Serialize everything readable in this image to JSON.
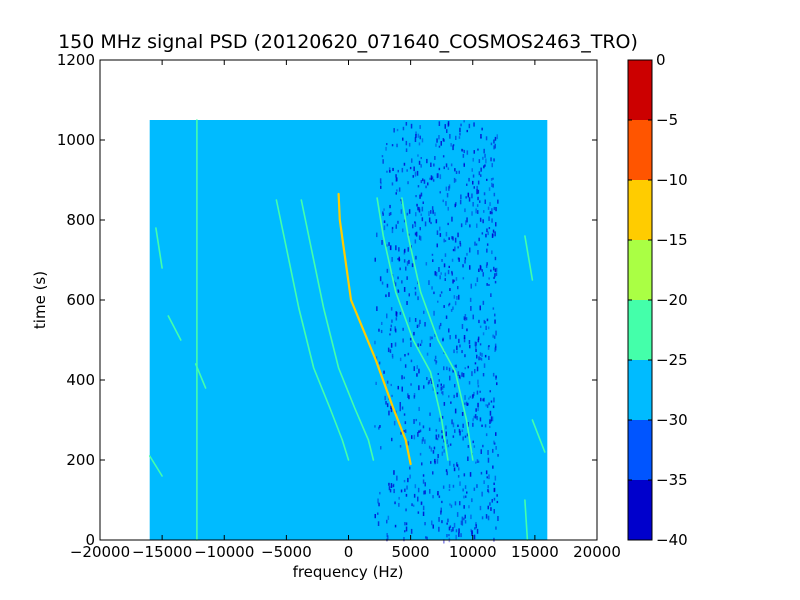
{
  "chart_data": {
    "type": "heatmap",
    "title": "150 MHz signal PSD (20120620_071640_COSMOS2463_TRO)",
    "xlabel": "frequency (Hz)",
    "ylabel": "time (s)",
    "xlim": [
      -20000,
      20000
    ],
    "ylim": [
      0,
      1200
    ],
    "x_ticks": [
      -20000,
      -15000,
      -10000,
      -5000,
      0,
      5000,
      10000,
      15000,
      20000
    ],
    "y_ticks": [
      0,
      200,
      400,
      600,
      800,
      1000,
      1200
    ],
    "data_extent": {
      "x": [
        -16000,
        16000
      ],
      "y": [
        0,
        1050
      ]
    },
    "background_level": -28,
    "colorbar": {
      "range": [
        -40,
        0
      ],
      "ticks": [
        0,
        -5,
        -10,
        -15,
        -20,
        -25,
        -30,
        -35,
        -40
      ],
      "bands": [
        {
          "from": -40,
          "to": -35,
          "color": "#0000cc"
        },
        {
          "from": -35,
          "to": -30,
          "color": "#0055ff"
        },
        {
          "from": -30,
          "to": -25,
          "color": "#00bbff"
        },
        {
          "from": -25,
          "to": -20,
          "color": "#44ffaa"
        },
        {
          "from": -20,
          "to": -15,
          "color": "#aaff44"
        },
        {
          "from": -15,
          "to": -10,
          "color": "#ffcc00"
        },
        {
          "from": -10,
          "to": -5,
          "color": "#ff5500"
        },
        {
          "from": -5,
          "to": 0,
          "color": "#cc0000"
        }
      ]
    },
    "noise_band": {
      "x": [
        2000,
        12000
      ],
      "level": -35
    },
    "series": [
      {
        "level": -24,
        "points": [
          [
            -5800,
            850
          ],
          [
            -5000,
            730
          ],
          [
            -4000,
            580
          ],
          [
            -2800,
            430
          ],
          [
            -1500,
            330
          ],
          [
            -500,
            250
          ],
          [
            0,
            200
          ]
        ]
      },
      {
        "level": -24,
        "points": [
          [
            -3800,
            850
          ],
          [
            -3000,
            730
          ],
          [
            -2000,
            580
          ],
          [
            -800,
            430
          ],
          [
            500,
            330
          ],
          [
            1600,
            250
          ],
          [
            2000,
            200
          ]
        ]
      },
      {
        "level": -12,
        "points": [
          [
            -800,
            865
          ],
          [
            -700,
            800
          ],
          [
            200,
            600
          ],
          [
            2200,
            450
          ],
          [
            3600,
            330
          ],
          [
            4600,
            250
          ],
          [
            5000,
            190
          ]
        ]
      },
      {
        "level": -24,
        "points": [
          [
            2300,
            855
          ],
          [
            2800,
            760
          ],
          [
            3800,
            620
          ],
          [
            5200,
            500
          ],
          [
            6600,
            420
          ],
          [
            7500,
            300
          ],
          [
            8000,
            200
          ]
        ]
      },
      {
        "level": -24,
        "points": [
          [
            4300,
            855
          ],
          [
            4800,
            760
          ],
          [
            5800,
            620
          ],
          [
            7200,
            500
          ],
          [
            8600,
            420
          ],
          [
            9500,
            300
          ],
          [
            10000,
            200
          ]
        ]
      },
      {
        "level": -24,
        "points": [
          [
            -12200,
            0
          ],
          [
            -12200,
            1050
          ]
        ]
      },
      {
        "level": -24,
        "points": [
          [
            -16000,
            210
          ],
          [
            -15000,
            160
          ]
        ]
      },
      {
        "level": -24,
        "points": [
          [
            -15500,
            780
          ],
          [
            -15000,
            680
          ]
        ]
      },
      {
        "level": -24,
        "points": [
          [
            -14500,
            560
          ],
          [
            -13500,
            500
          ]
        ]
      },
      {
        "level": -24,
        "points": [
          [
            -12300,
            440
          ],
          [
            -11500,
            380
          ]
        ]
      },
      {
        "level": -24,
        "points": [
          [
            14200,
            760
          ],
          [
            14800,
            650
          ]
        ]
      },
      {
        "level": -24,
        "points": [
          [
            14800,
            300
          ],
          [
            15800,
            220
          ]
        ]
      },
      {
        "level": -24,
        "points": [
          [
            14200,
            100
          ],
          [
            14400,
            0
          ]
        ]
      }
    ]
  }
}
